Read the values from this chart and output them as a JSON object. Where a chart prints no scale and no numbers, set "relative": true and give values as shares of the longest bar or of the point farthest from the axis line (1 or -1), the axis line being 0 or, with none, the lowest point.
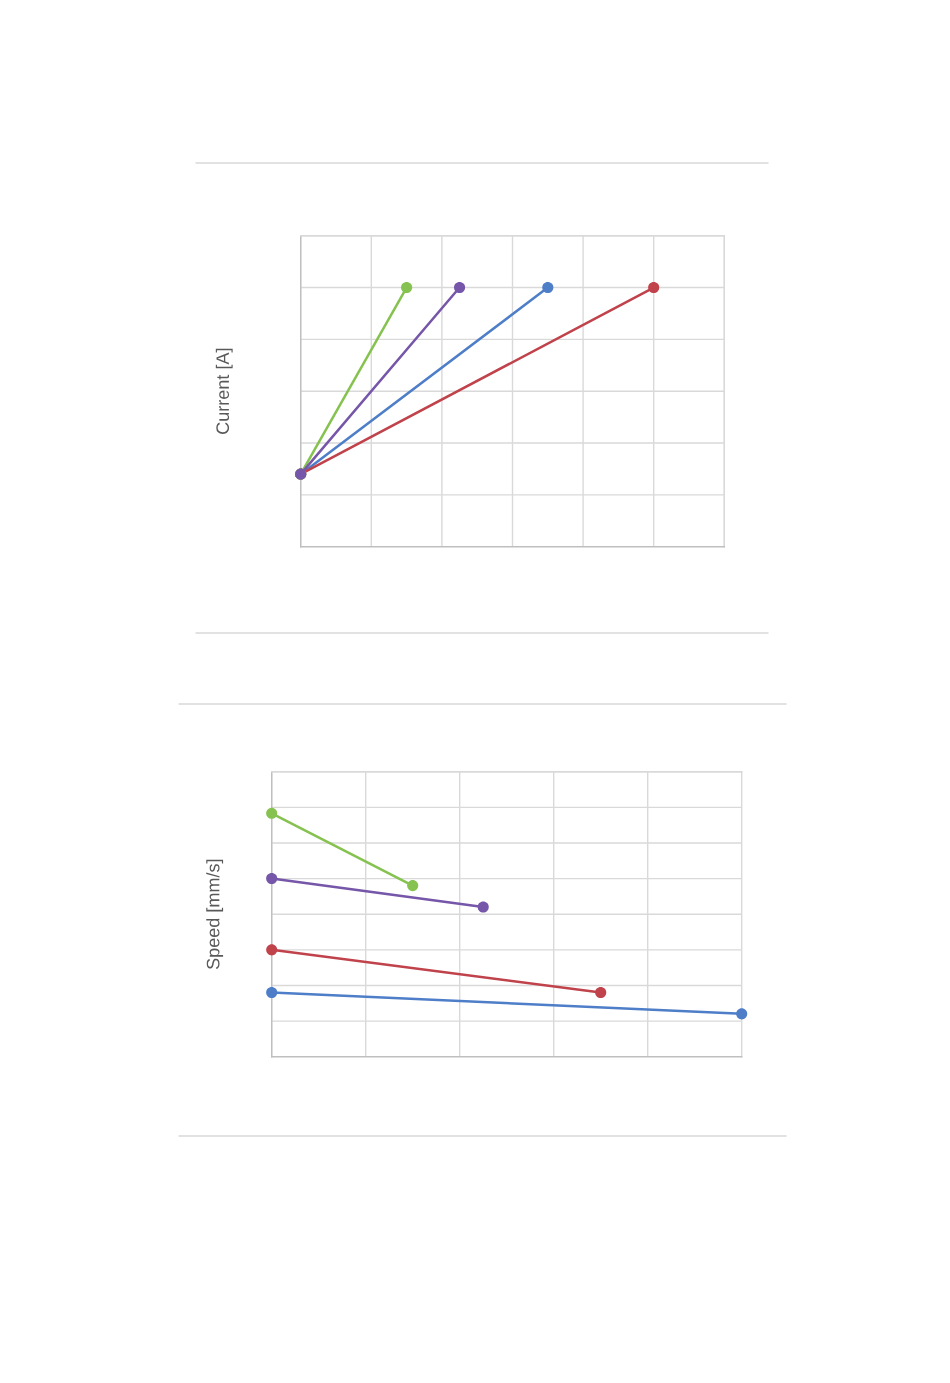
{
  "chart_data": [
    {
      "type": "line",
      "ylabel": "Current [A]",
      "relative": true,
      "grid": true,
      "marker": "circle",
      "line_style": "solid",
      "categories": [
        null,
        null,
        null,
        null,
        null,
        null,
        null,
        null,
        null,
        null,
        null,
        null,
        null,
        null,
        null,
        null,
        null,
        null,
        null,
        null,
        null,
        null,
        null,
        null,
        null
      ],
      "series": [
        {
          "color": "#4e7ec8",
          "values": [
            0.28,
            null,
            null,
            null,
            null,
            null,
            null,
            null,
            null,
            null,
            null,
            null,
            null,
            null,
            1,
            null,
            null,
            null,
            null,
            null,
            null,
            null,
            null,
            null,
            null
          ]
        },
        {
          "color": "#c0424b",
          "values": [
            0.28,
            null,
            null,
            null,
            null,
            null,
            null,
            null,
            null,
            null,
            null,
            null,
            null,
            null,
            null,
            null,
            null,
            null,
            null,
            null,
            1,
            null,
            null,
            null,
            null
          ]
        },
        {
          "color": "#86c24f",
          "values": [
            0.28,
            null,
            null,
            null,
            null,
            null,
            1,
            null,
            null,
            null,
            null,
            null,
            null,
            null,
            null,
            null,
            null,
            null,
            null,
            null,
            null,
            null,
            null,
            null,
            null
          ]
        },
        {
          "color": "#7656a8",
          "values": [
            0.28,
            null,
            null,
            null,
            null,
            null,
            null,
            null,
            null,
            1,
            null,
            null,
            null,
            null,
            null,
            null,
            null,
            null,
            null,
            null,
            null,
            null,
            null,
            null,
            null
          ]
        }
      ]
    },
    {
      "type": "line",
      "ylabel": "Speed [mm/s]",
      "relative": true,
      "grid": true,
      "marker": "circle",
      "line_style": "solid",
      "categories": [
        null,
        null,
        null,
        null,
        null,
        null,
        null,
        null,
        null,
        null,
        null,
        null,
        null,
        null,
        null,
        null,
        null,
        null,
        null,
        null,
        null
      ],
      "series": [
        {
          "color": "#4e7ec8",
          "values": [
            0.264,
            null,
            null,
            null,
            null,
            null,
            null,
            null,
            null,
            null,
            null,
            null,
            null,
            null,
            null,
            null,
            null,
            null,
            null,
            null,
            0.176
          ]
        },
        {
          "color": "#c0424b",
          "values": [
            0.439,
            null,
            null,
            null,
            null,
            null,
            null,
            null,
            null,
            null,
            null,
            null,
            null,
            null,
            0.264,
            null,
            null,
            null,
            null,
            null,
            null
          ]
        },
        {
          "color": "#86c24f",
          "values": [
            1,
            null,
            null,
            null,
            null,
            null,
            0.703,
            null,
            null,
            null,
            null,
            null,
            null,
            null,
            null,
            null,
            null,
            null,
            null,
            null,
            null
          ]
        },
        {
          "color": "#7656a8",
          "values": [
            0.732,
            null,
            null,
            null,
            null,
            null,
            null,
            null,
            null,
            0.615,
            null,
            null,
            null,
            null,
            null,
            null,
            null,
            null,
            null,
            null,
            null
          ]
        }
      ]
    }
  ]
}
